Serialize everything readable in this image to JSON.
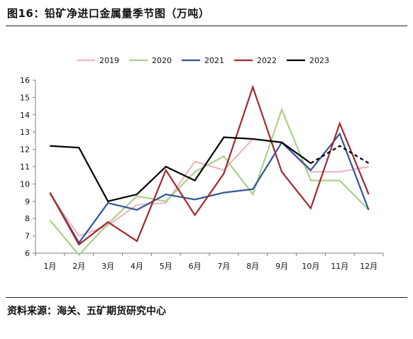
{
  "title": "图16：铅矿净进口金属量季节图（万吨）",
  "source": "资料来源：海关、五矿期货研究中心",
  "chart_data": {
    "type": "line",
    "categories": [
      "1月",
      "2月",
      "3月",
      "4月",
      "5月",
      "6月",
      "7月",
      "8月",
      "9月",
      "10月",
      "11月",
      "12月"
    ],
    "ylim": [
      6,
      16
    ],
    "yticks": [
      6,
      7,
      8,
      9,
      10,
      11,
      12,
      13,
      14,
      15,
      16
    ],
    "grid": false,
    "legend_position": "top",
    "series": [
      {
        "name": "2019",
        "color": "#f0b6bf",
        "dash": false,
        "values": [
          9.4,
          7.0,
          7.6,
          8.8,
          8.9,
          11.3,
          10.8,
          12.6,
          12.4,
          10.7,
          10.7,
          11.0
        ]
      },
      {
        "name": "2020",
        "color": "#a9d08e",
        "dash": false,
        "values": [
          7.9,
          5.9,
          7.7,
          9.3,
          9.0,
          10.7,
          11.6,
          9.4,
          14.3,
          10.2,
          10.2,
          8.5
        ]
      },
      {
        "name": "2021",
        "color": "#2f5597",
        "dash": false,
        "values": [
          9.5,
          6.6,
          8.9,
          8.5,
          9.4,
          9.1,
          9.5,
          9.7,
          12.4,
          10.8,
          12.9,
          8.5
        ]
      },
      {
        "name": "2022",
        "color": "#a3282f",
        "dash": false,
        "values": [
          9.5,
          6.5,
          7.8,
          6.7,
          10.8,
          8.2,
          10.6,
          15.6,
          10.7,
          8.6,
          13.5,
          9.4
        ]
      },
      {
        "name": "2023",
        "color": "#000000",
        "dash": false,
        "dash_from_index": 9,
        "values": [
          12.2,
          12.1,
          9.0,
          9.4,
          11.0,
          10.2,
          12.7,
          12.6,
          12.4,
          11.2,
          12.2,
          11.2
        ]
      }
    ]
  }
}
